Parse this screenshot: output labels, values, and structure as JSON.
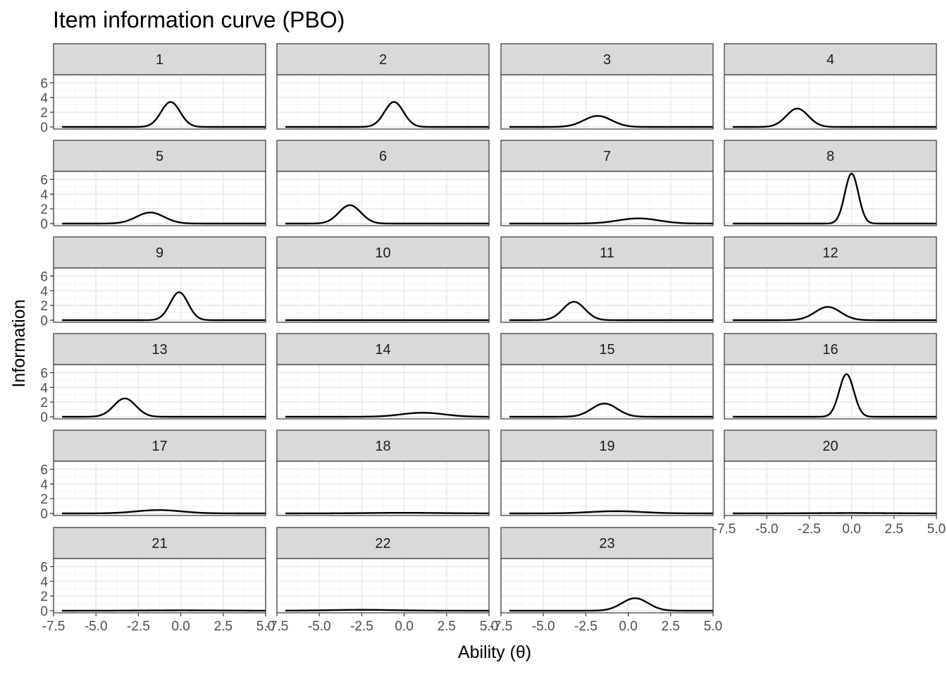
{
  "chart_data": {
    "type": "line",
    "title": "Item information curve (PBO)",
    "xlabel": "Ability (θ)",
    "ylabel": "Information",
    "xlim": [
      -7.5,
      5.0
    ],
    "ylim": [
      0,
      7
    ],
    "x_ticks": [
      "-7.5",
      "-5.0",
      "-2.5",
      "0.0",
      "2.5",
      "5.0"
    ],
    "y_ticks": [
      "0",
      "2",
      "4",
      "6"
    ],
    "grid": true,
    "theme": "bw",
    "panels": [
      {
        "name": "1",
        "peak_theta": -0.6,
        "peak_info": 3.4
      },
      {
        "name": "2",
        "peak_theta": -0.6,
        "peak_info": 3.4
      },
      {
        "name": "3",
        "peak_theta": -1.8,
        "peak_info": 1.5
      },
      {
        "name": "4",
        "peak_theta": -3.2,
        "peak_info": 2.5
      },
      {
        "name": "5",
        "peak_theta": -1.8,
        "peak_info": 1.5
      },
      {
        "name": "6",
        "peak_theta": -3.2,
        "peak_info": 2.5
      },
      {
        "name": "7",
        "peak_theta": 0.6,
        "peak_info": 0.7
      },
      {
        "name": "8",
        "peak_theta": 0.0,
        "peak_info": 6.8
      },
      {
        "name": "9",
        "peak_theta": -0.1,
        "peak_info": 3.8
      },
      {
        "name": "10",
        "peak_theta": 0.0,
        "peak_info": 0.0
      },
      {
        "name": "11",
        "peak_theta": -3.2,
        "peak_info": 2.5
      },
      {
        "name": "12",
        "peak_theta": -1.4,
        "peak_info": 1.8
      },
      {
        "name": "13",
        "peak_theta": -3.3,
        "peak_info": 2.5
      },
      {
        "name": "14",
        "peak_theta": 1.1,
        "peak_info": 0.55
      },
      {
        "name": "15",
        "peak_theta": -1.4,
        "peak_info": 1.8
      },
      {
        "name": "16",
        "peak_theta": -0.3,
        "peak_info": 5.8
      },
      {
        "name": "17",
        "peak_theta": -1.3,
        "peak_info": 0.45
      },
      {
        "name": "18",
        "peak_theta": 0.0,
        "peak_info": 0.08
      },
      {
        "name": "19",
        "peak_theta": -0.7,
        "peak_info": 0.3
      },
      {
        "name": "20",
        "peak_theta": 0.0,
        "peak_info": 0.05
      },
      {
        "name": "21",
        "peak_theta": 0.0,
        "peak_info": 0.05
      },
      {
        "name": "22",
        "peak_theta": -2.5,
        "peak_info": 0.12
      },
      {
        "name": "23",
        "peak_theta": 0.4,
        "peak_info": 1.7
      }
    ]
  }
}
